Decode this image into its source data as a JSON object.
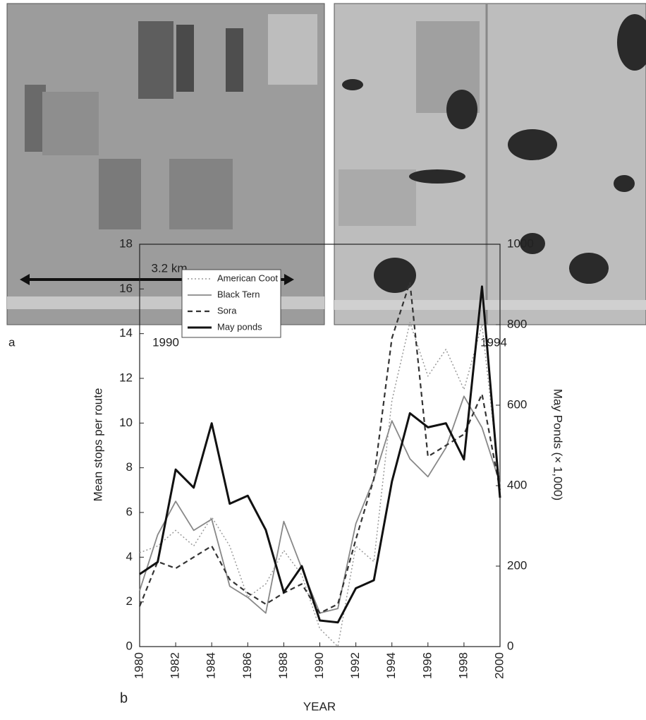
{
  "figure": {
    "panel_a_label": "a",
    "captions": [
      "1990",
      "1994"
    ],
    "scale_bar": "3.2 km",
    "panel_b_label": "b"
  },
  "chart_data": {
    "type": "line",
    "x": [
      1980,
      1981,
      1982,
      1983,
      1984,
      1985,
      1986,
      1987,
      1988,
      1989,
      1990,
      1991,
      1992,
      1993,
      1994,
      1995,
      1996,
      1997,
      1998,
      1999,
      2000
    ],
    "xlim": [
      1980,
      2000
    ],
    "xticks": [
      1980,
      1982,
      1984,
      1986,
      1988,
      1990,
      1992,
      1994,
      1996,
      1998,
      2000
    ],
    "ylim": [
      0,
      18
    ],
    "yticks": [
      0,
      2,
      4,
      6,
      8,
      10,
      12,
      14,
      16,
      18
    ],
    "y2lim": [
      0,
      1000
    ],
    "y2ticks": [
      0,
      200,
      400,
      600,
      800,
      1000
    ],
    "xlabel": "YEAR",
    "ylabel": "Mean stops per route",
    "y2label": "May Ponds (× 1,000)",
    "legend": "upper left",
    "grid": false,
    "series": [
      {
        "name": "American Coot",
        "color": "#9a9a9a",
        "width": 1.5,
        "dash": "dotted",
        "values": [
          4.2,
          4.5,
          5.2,
          4.5,
          5.8,
          4.5,
          2.2,
          2.8,
          4.3,
          3.2,
          0.8,
          0,
          4.5,
          3.8,
          11,
          14.5,
          12.1,
          13.3,
          11.5,
          14.4,
          7.2
        ]
      },
      {
        "name": "Black Tern",
        "color": "#888888",
        "width": 1.8,
        "dash": "solid",
        "values": [
          2.5,
          5,
          6.5,
          5.2,
          5.7,
          2.7,
          2.2,
          1.5,
          5.6,
          3.5,
          1.5,
          1.7,
          5.5,
          7.5,
          10.1,
          8.4,
          7.6,
          8.9,
          11.2,
          9.8,
          7.3
        ]
      },
      {
        "name": "Sora",
        "color": "#333333",
        "width": 2.2,
        "dash": "dashed",
        "values": [
          1.8,
          3.8,
          3.5,
          4,
          4.5,
          3,
          2.4,
          1.9,
          2.4,
          2.8,
          1.5,
          1.9,
          4.8,
          7.5,
          13.8,
          16.3,
          8.5,
          9,
          9.5,
          11.3,
          7
        ]
      },
      {
        "name": "May ponds",
        "color": "#111111",
        "width": 3,
        "dash": "solid",
        "axis": "y2",
        "values": [
          180,
          210,
          440,
          395,
          555,
          355,
          375,
          290,
          135,
          200,
          65,
          60,
          145,
          165,
          410,
          580,
          545,
          555,
          465,
          895,
          370
        ]
      }
    ]
  }
}
